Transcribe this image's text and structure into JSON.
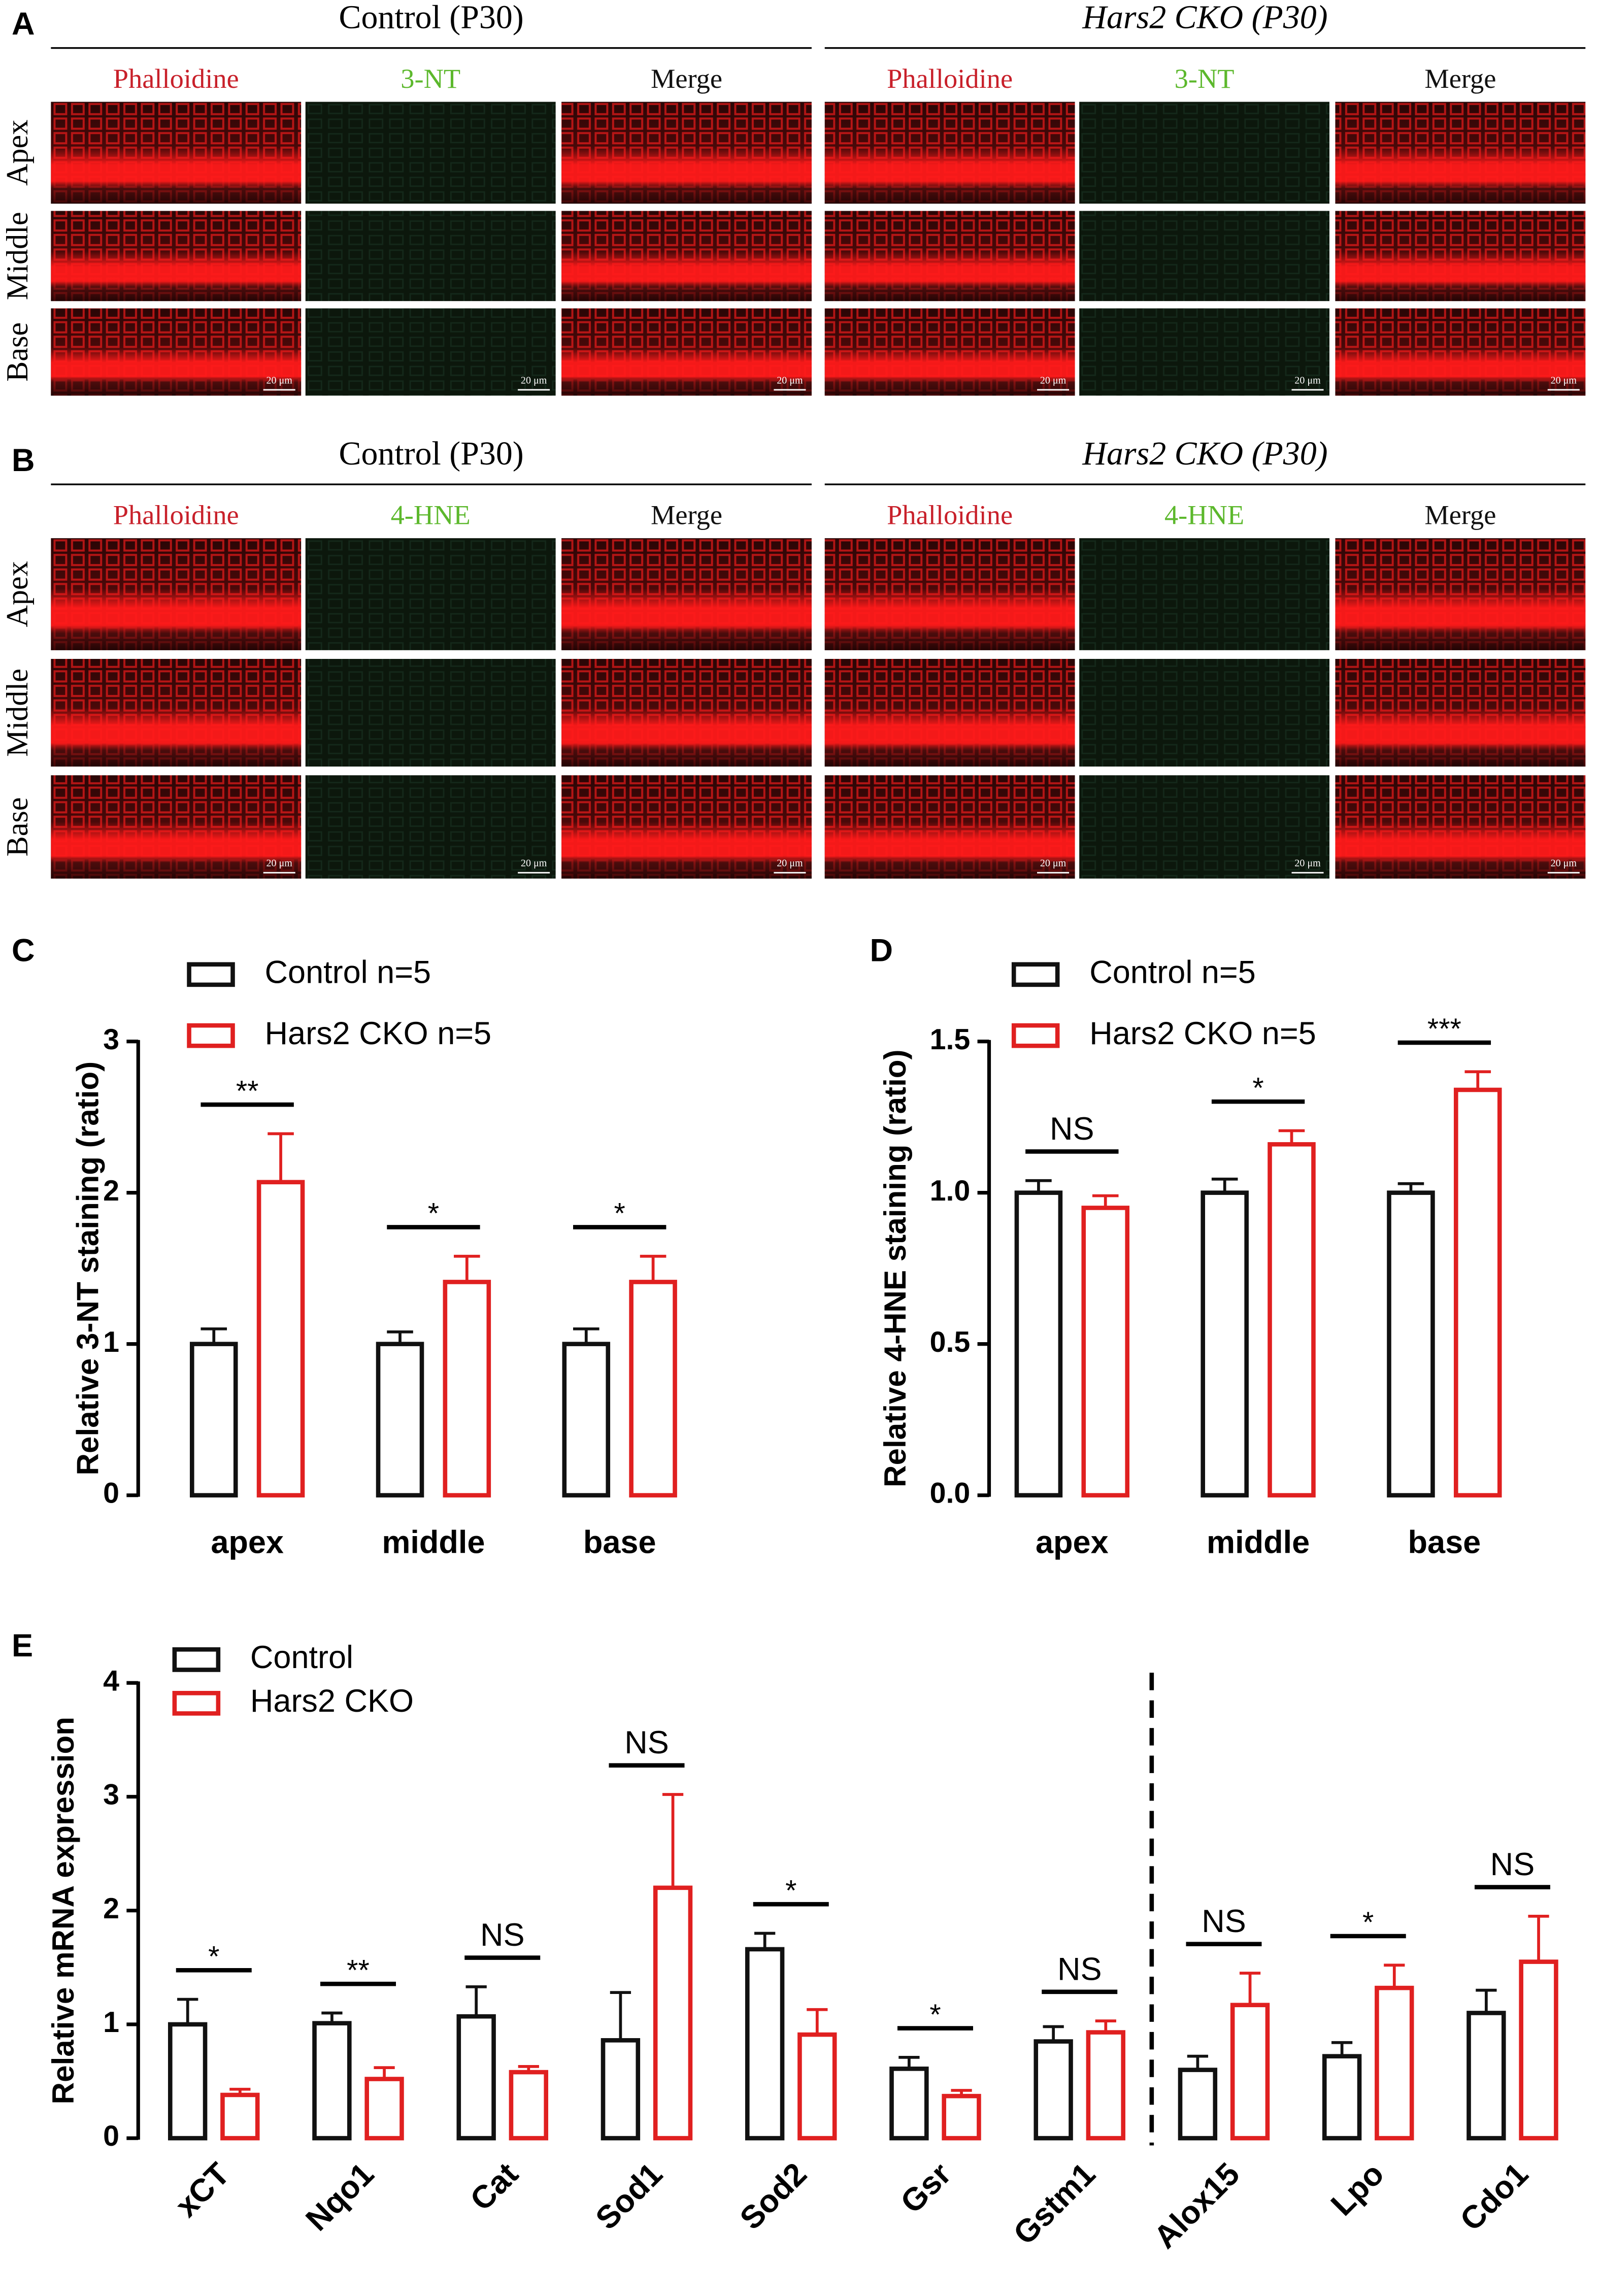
{
  "panel_a": {
    "label": "A",
    "rows": [
      "Apex",
      "Middle",
      "Base"
    ],
    "scale_bar": "20 μm",
    "groups": [
      {
        "title": "Control (P30)",
        "columns": [
          "Phalloidine",
          "3-NT",
          "Merge"
        ]
      },
      {
        "title": "Hars2 CKO (P30)",
        "columns": [
          "Phalloidine",
          "3-NT",
          "Merge"
        ]
      }
    ]
  },
  "panel_b": {
    "label": "B",
    "rows": [
      "Apex",
      "Middle",
      "Base"
    ],
    "scale_bar": "20 μm",
    "groups": [
      {
        "title": "Control (P30)",
        "columns": [
          "Phalloidine",
          "4-HNE",
          "Merge"
        ]
      },
      {
        "title": "Hars2 CKO (P30)",
        "columns": [
          "Phalloidine",
          "4-HNE",
          "Merge"
        ]
      }
    ]
  },
  "chart_data": [
    {
      "type": "bar",
      "panel": "C",
      "ylabel": "Relative 3-NT staining (ratio)",
      "categories": [
        "apex",
        "middle",
        "base"
      ],
      "series": [
        {
          "name": "Control n=5",
          "color": "#111111",
          "values": [
            1,
            1,
            1
          ],
          "errors": [
            0.1,
            0.08,
            0.1
          ]
        },
        {
          "name": "Hars2 CKO n=5",
          "color": "#e02020",
          "values": [
            2.07,
            1.41,
            1.41
          ],
          "errors": [
            0.32,
            0.17,
            0.17
          ]
        }
      ],
      "significance": [
        "**",
        "*",
        "*"
      ],
      "ylim": [
        0,
        3
      ],
      "yticks": [
        0,
        1,
        2,
        3
      ]
    },
    {
      "type": "bar",
      "panel": "D",
      "ylabel": "Relative 4-HNE staining (ratio)",
      "categories": [
        "apex",
        "middle",
        "base"
      ],
      "series": [
        {
          "name": "Control n=5",
          "color": "#111111",
          "values": [
            1,
            1,
            1
          ],
          "errors": [
            0.04,
            0.045,
            0.03
          ]
        },
        {
          "name": "Hars2 CKO n=5",
          "color": "#e02020",
          "values": [
            0.95,
            1.16,
            1.34
          ],
          "errors": [
            0.04,
            0.045,
            0.06
          ]
        }
      ],
      "significance": [
        "NS",
        "*",
        "***"
      ],
      "ylim": [
        0,
        1.5
      ],
      "yticks": [
        {
          "value": 0,
          "label": "0.0"
        },
        0.5,
        {
          "value": 1,
          "label": "1.0"
        },
        1.5
      ]
    },
    {
      "type": "bar",
      "panel": "E",
      "ylabel": "Relative mRNA expression",
      "categories": [
        "xCT",
        "Nqo1",
        "Cat",
        "Sod1",
        "Sod2",
        "Gsr",
        "Gstm1",
        "Alox15",
        "Lpo",
        "Cdo1"
      ],
      "series": [
        {
          "name": "Control",
          "color": "#111111",
          "values": [
            1.0,
            1.01,
            1.07,
            0.86,
            1.66,
            0.61,
            0.85,
            0.6,
            0.72,
            1.1
          ],
          "errors": [
            0.22,
            0.09,
            0.26,
            0.42,
            0.14,
            0.1,
            0.13,
            0.12,
            0.12,
            0.2
          ]
        },
        {
          "name": "Hars2 CKO",
          "color": "#e02020",
          "values": [
            0.38,
            0.52,
            0.58,
            2.2,
            0.91,
            0.37,
            0.93,
            1.17,
            1.32,
            1.55
          ],
          "errors": [
            0.05,
            0.1,
            0.05,
            0.82,
            0.22,
            0.05,
            0.1,
            0.28,
            0.2,
            0.4
          ]
        }
      ],
      "significance": [
        "*",
        "**",
        "NS",
        "NS",
        "*",
        "*",
        "NS",
        "NS",
        "*",
        "NS"
      ],
      "ylim": [
        0,
        4
      ],
      "yticks": [
        0,
        1,
        2,
        3,
        4
      ]
    }
  ]
}
